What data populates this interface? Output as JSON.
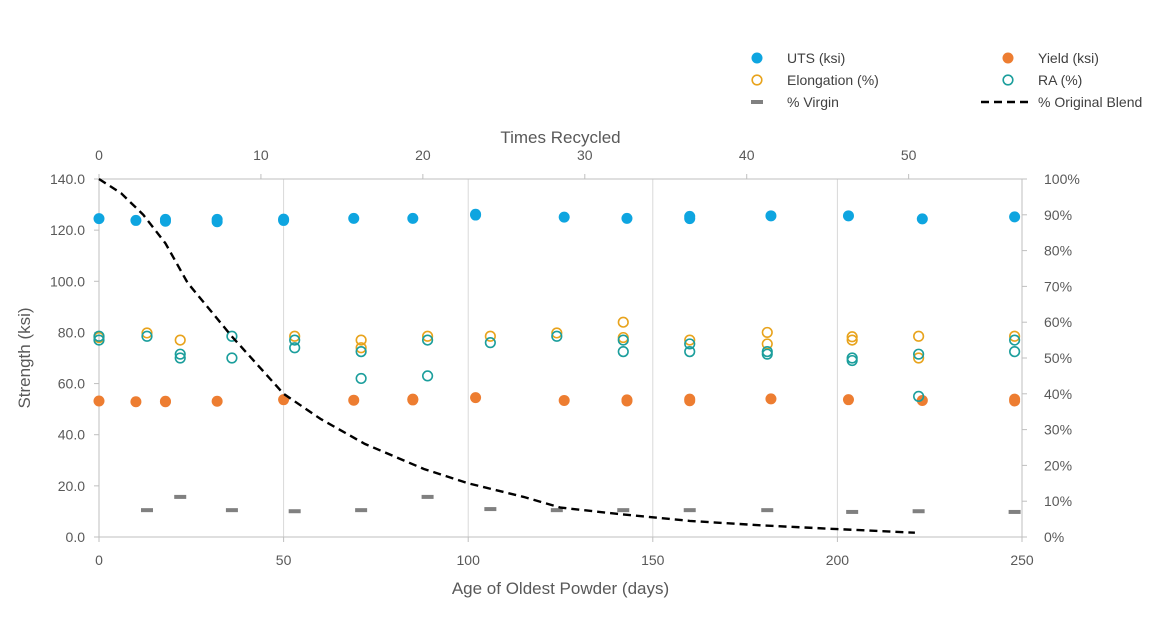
{
  "chart_data": {
    "type": "scatter",
    "title": "",
    "xlabel": "Age of Oldest Powder (days)",
    "x2label": "Times Recycled",
    "ylabel": "Strength (ksi)",
    "y2label": "",
    "xlim": [
      0,
      250
    ],
    "x2lim": [
      0,
      57
    ],
    "ylim": [
      0,
      140
    ],
    "y2lim": [
      0,
      100
    ],
    "x_ticks": [
      0,
      50,
      100,
      150,
      200,
      250
    ],
    "x_tick_labels": [
      "0",
      "50",
      "100",
      "150",
      "200",
      "250"
    ],
    "x2_ticks": [
      0,
      10,
      20,
      30,
      40,
      50
    ],
    "x2_tick_labels": [
      "0",
      "10",
      "20",
      "30",
      "40",
      "50"
    ],
    "y_ticks": [
      0,
      20,
      40,
      60,
      80,
      100,
      120,
      140
    ],
    "y_tick_labels": [
      "0.0",
      "20.0",
      "40.0",
      "60.0",
      "80.0",
      "100.0",
      "120.0",
      "140.0"
    ],
    "y2_ticks": [
      0,
      10,
      20,
      30,
      40,
      50,
      60,
      70,
      80,
      90,
      100
    ],
    "y2_tick_labels": [
      "0%",
      "10%",
      "20%",
      "30%",
      "40%",
      "50%",
      "60%",
      "70%",
      "80%",
      "90%",
      "100%"
    ],
    "grid": "vertical",
    "legend": "top-right",
    "series": [
      {
        "name": "UTS (ksi)",
        "marker": "filled-circle",
        "color": "#0ea5e0",
        "axis": "left",
        "points": [
          [
            0,
            124.5
          ],
          [
            10,
            123.8
          ],
          [
            18,
            124.2
          ],
          [
            18,
            123.5
          ],
          [
            32,
            124.2
          ],
          [
            32,
            123.3
          ],
          [
            50,
            124.3
          ],
          [
            50,
            123.8
          ],
          [
            69,
            124.6
          ],
          [
            85,
            124.6
          ],
          [
            102,
            126.2
          ],
          [
            102,
            125.9
          ],
          [
            126,
            125.1
          ],
          [
            143,
            124.6
          ],
          [
            160,
            125.4
          ],
          [
            160,
            124.5
          ],
          [
            182,
            125.6
          ],
          [
            203,
            125.6
          ],
          [
            223,
            124.4
          ],
          [
            248,
            125.2
          ]
        ]
      },
      {
        "name": "Yield (ksi)",
        "marker": "filled-circle",
        "color": "#ed7d31",
        "axis": "left",
        "points": [
          [
            0,
            53.2
          ],
          [
            10,
            52.9
          ],
          [
            18,
            53.1
          ],
          [
            18,
            52.9
          ],
          [
            32,
            53.1
          ],
          [
            50,
            53.7
          ],
          [
            69,
            53.5
          ],
          [
            85,
            53.9
          ],
          [
            85,
            53.6
          ],
          [
            102,
            54.5
          ],
          [
            126,
            53.4
          ],
          [
            143,
            53.6
          ],
          [
            143,
            53.2
          ],
          [
            160,
            53.9
          ],
          [
            160,
            53.3
          ],
          [
            182,
            54.0
          ],
          [
            203,
            53.7
          ],
          [
            223,
            53.4
          ],
          [
            248,
            53.9
          ],
          [
            248,
            53.2
          ]
        ]
      },
      {
        "name": "Elongation (%)",
        "marker": "open-circle",
        "color": "#e8a31c",
        "axis": "left",
        "points": [
          [
            0,
            78.0
          ],
          [
            13,
            79.8
          ],
          [
            22,
            77.0
          ],
          [
            53,
            78.5
          ],
          [
            71,
            77.0
          ],
          [
            71,
            74.0
          ],
          [
            89,
            78.5
          ],
          [
            106,
            78.5
          ],
          [
            124,
            79.8
          ],
          [
            142,
            84.0
          ],
          [
            142,
            78.0
          ],
          [
            160,
            77.0
          ],
          [
            181,
            80.0
          ],
          [
            181,
            75.5
          ],
          [
            204,
            78.3
          ],
          [
            204,
            77.0
          ],
          [
            222,
            78.5
          ],
          [
            222,
            70.0
          ],
          [
            248,
            78.5
          ]
        ]
      },
      {
        "name": "RA (%)",
        "marker": "open-circle",
        "color": "#1b9e9c",
        "axis": "left",
        "points": [
          [
            0,
            78.5
          ],
          [
            0,
            77.0
          ],
          [
            13,
            78.5
          ],
          [
            22,
            71.5
          ],
          [
            22,
            70.0
          ],
          [
            36,
            78.5
          ],
          [
            36,
            70.0
          ],
          [
            53,
            77.0
          ],
          [
            53,
            74.0
          ],
          [
            71,
            72.5
          ],
          [
            71,
            62.0
          ],
          [
            89,
            77.0
          ],
          [
            89,
            63.0
          ],
          [
            106,
            76.0
          ],
          [
            124,
            78.5
          ],
          [
            142,
            77.0
          ],
          [
            142,
            72.5
          ],
          [
            160,
            75.5
          ],
          [
            160,
            72.5
          ],
          [
            181,
            72.5
          ],
          [
            181,
            71.5
          ],
          [
            204,
            70.0
          ],
          [
            204,
            69.0
          ],
          [
            222,
            71.5
          ],
          [
            222,
            55.0
          ],
          [
            248,
            77.0
          ],
          [
            248,
            72.5
          ]
        ]
      },
      {
        "name": "% Virgin",
        "marker": "dash",
        "color": "#808080",
        "axis": "right",
        "points": [
          [
            13,
            7.5
          ],
          [
            22,
            11.2
          ],
          [
            36,
            7.5
          ],
          [
            53,
            7.2
          ],
          [
            71,
            7.5
          ],
          [
            89,
            11.2
          ],
          [
            106,
            7.8
          ],
          [
            124,
            7.5
          ],
          [
            142,
            7.5
          ],
          [
            160,
            7.5
          ],
          [
            181,
            7.5
          ],
          [
            204,
            7.0
          ],
          [
            222,
            7.2
          ],
          [
            248,
            7.0
          ]
        ]
      },
      {
        "name": "% Original Blend",
        "marker": "dashed-line",
        "color": "#000000",
        "axis": "right",
        "points": [
          [
            0,
            100
          ],
          [
            6,
            96
          ],
          [
            12,
            90
          ],
          [
            18,
            82
          ],
          [
            24,
            71
          ],
          [
            36,
            56
          ],
          [
            50,
            40
          ],
          [
            60,
            33
          ],
          [
            72,
            26
          ],
          [
            88,
            19
          ],
          [
            100,
            15
          ],
          [
            115,
            11.2
          ],
          [
            125,
            8.2
          ],
          [
            140,
            6.5
          ],
          [
            160,
            4.5
          ],
          [
            180,
            3.2
          ],
          [
            200,
            2.2
          ],
          [
            221,
            1.2
          ]
        ]
      }
    ]
  }
}
